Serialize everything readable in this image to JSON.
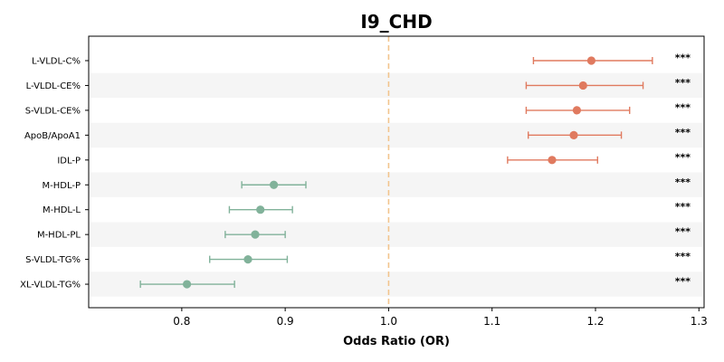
{
  "chart_data": {
    "type": "forest",
    "title": "I9_CHD",
    "xlabel": "Odds Ratio (OR)",
    "ylabel": "",
    "xlim": [
      0.71,
      1.305
    ],
    "xticks": [
      0.8,
      0.9,
      1.0,
      1.1,
      1.2,
      1.3
    ],
    "xtick_labels": [
      "0.8",
      "0.9",
      "1.0",
      "1.1",
      "1.2",
      "1.3"
    ],
    "reference_line": 1.0,
    "reference_line_style": "dashed",
    "alternating_row_shading": true,
    "colors": {
      "positive": "#e07a5f",
      "negative": "#81b29a",
      "reference": "#f2c48d",
      "row_shade": "#f5f5f5",
      "axis": "#000000"
    },
    "rows": [
      {
        "label": "L-VLDL-C%",
        "or": 1.196,
        "ci_low": 1.14,
        "ci_high": 1.255,
        "sig": "***",
        "direction": "positive"
      },
      {
        "label": "L-VLDL-CE%",
        "or": 1.188,
        "ci_low": 1.133,
        "ci_high": 1.246,
        "sig": "***",
        "direction": "positive"
      },
      {
        "label": "S-VLDL-CE%",
        "or": 1.182,
        "ci_low": 1.133,
        "ci_high": 1.233,
        "sig": "***",
        "direction": "positive"
      },
      {
        "label": "ApoB/ApoA1",
        "or": 1.179,
        "ci_low": 1.135,
        "ci_high": 1.225,
        "sig": "***",
        "direction": "positive"
      },
      {
        "label": "IDL-P",
        "or": 1.158,
        "ci_low": 1.115,
        "ci_high": 1.202,
        "sig": "***",
        "direction": "positive"
      },
      {
        "label": "M-HDL-P",
        "or": 0.889,
        "ci_low": 0.858,
        "ci_high": 0.92,
        "sig": "***",
        "direction": "negative"
      },
      {
        "label": "M-HDL-L",
        "or": 0.876,
        "ci_low": 0.846,
        "ci_high": 0.907,
        "sig": "***",
        "direction": "negative"
      },
      {
        "label": "M-HDL-PL",
        "or": 0.871,
        "ci_low": 0.842,
        "ci_high": 0.9,
        "sig": "***",
        "direction": "negative"
      },
      {
        "label": "S-VLDL-TG%",
        "or": 0.864,
        "ci_low": 0.827,
        "ci_high": 0.902,
        "sig": "***",
        "direction": "negative"
      },
      {
        "label": "XL-VLDL-TG%",
        "or": 0.805,
        "ci_low": 0.76,
        "ci_high": 0.851,
        "sig": "***",
        "direction": "negative"
      }
    ]
  }
}
